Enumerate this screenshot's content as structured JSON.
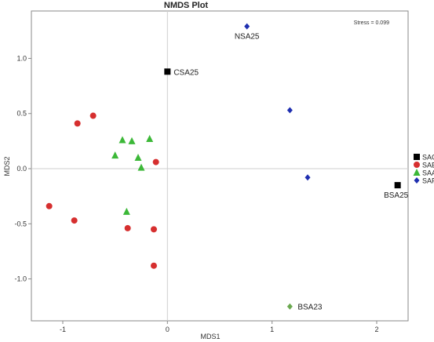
{
  "chart_data": {
    "type": "scatter",
    "title": "NMDS Plot",
    "xlabel": "MDS1",
    "ylabel": "MDS2",
    "xlim": [
      -1.3,
      2.3
    ],
    "ylim": [
      -1.38,
      1.43
    ],
    "xticks": [
      -1,
      0,
      1,
      2
    ],
    "yticks": [
      -1.0,
      -0.5,
      0.0,
      0.5,
      1.0
    ],
    "ytick_labels": [
      "-1.0",
      "-0.5",
      "0.0",
      "0.5",
      "1.0"
    ],
    "xtick_labels": [
      "-1",
      "0",
      "1",
      "2"
    ],
    "annotation": "Stress = 0.099",
    "zero_lines": true,
    "legend_position": "right",
    "series": [
      {
        "name": "SAC",
        "marker": "square",
        "color": "#000000",
        "points": [
          {
            "x": 0.0,
            "y": 0.88,
            "label": "CSA25"
          },
          {
            "x": 2.2,
            "y": -0.15,
            "label": "BSA25"
          }
        ]
      },
      {
        "name": "SAB",
        "marker": "circle",
        "color": "#d62f2f",
        "points": [
          {
            "x": -0.86,
            "y": 0.41
          },
          {
            "x": -0.71,
            "y": 0.48
          },
          {
            "x": -0.11,
            "y": 0.06
          },
          {
            "x": -1.13,
            "y": -0.34
          },
          {
            "x": -0.89,
            "y": -0.47
          },
          {
            "x": -0.38,
            "y": -0.54
          },
          {
            "x": -0.13,
            "y": -0.55
          },
          {
            "x": -0.13,
            "y": -0.88
          }
        ]
      },
      {
        "name": "SAA",
        "marker": "triangle",
        "color": "#3cb838",
        "points": [
          {
            "x": -0.43,
            "y": 0.26
          },
          {
            "x": -0.34,
            "y": 0.25
          },
          {
            "x": -0.17,
            "y": 0.27
          },
          {
            "x": -0.5,
            "y": 0.12
          },
          {
            "x": -0.28,
            "y": 0.1
          },
          {
            "x": -0.25,
            "y": 0.01
          },
          {
            "x": -0.39,
            "y": -0.39
          }
        ]
      },
      {
        "name": "SAF",
        "marker": "diamond",
        "color": "#1f2fb0",
        "points": [
          {
            "x": 0.76,
            "y": 1.29,
            "label": "NSA25"
          },
          {
            "x": 1.17,
            "y": 0.53
          },
          {
            "x": 1.34,
            "y": -0.08
          }
        ]
      },
      {
        "name": "",
        "marker": "diamond",
        "color": "#6aa84f",
        "points": [
          {
            "x": 1.17,
            "y": -1.25,
            "label": "BSA23"
          }
        ]
      }
    ]
  }
}
